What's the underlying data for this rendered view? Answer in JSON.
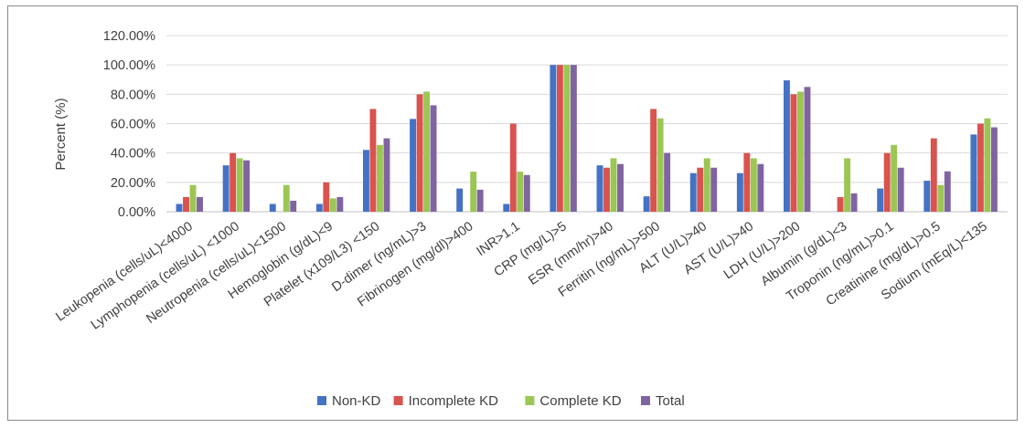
{
  "chart_data": {
    "type": "bar",
    "title": "",
    "xlabel": "",
    "ylabel": "Percent (%)",
    "ylim": [
      0,
      120
    ],
    "yticks": [
      "0.00%",
      "20.00%",
      "40.00%",
      "60.00%",
      "80.00%",
      "100.00%",
      "120.00%"
    ],
    "grid": true,
    "legend_position": "bottom",
    "categories": [
      "Leukopenia (cells/uL)<4000",
      "Lymphopenia (cells/uL) <1000",
      "Neutropenia (cells/uL)<1500",
      "Hemoglobin (g/dL)<9",
      "Platelet (x109/L3) <150",
      "D-dimer (ng/mL)>3",
      "Fibrinogen (mg/dl)>400",
      "INR>1.1",
      "CRP (mg/L)>5",
      "ESR (mm/hr)>40",
      "Ferritin (ng/mL)>500",
      "ALT (U/L)>40",
      "AST (U/L)>40",
      "LDH (U/L)>200",
      "Albumin (g/dL)<3",
      "Troponin (ng/mL)>0.1",
      "Creatinine (mg/dL)>0.5",
      "Sodium (mEq/L)<135"
    ],
    "series": [
      {
        "name": "Non-KD",
        "color": "#4472C4",
        "values": [
          5.3,
          31.6,
          5.3,
          5.3,
          42.1,
          63.2,
          15.8,
          5.3,
          100,
          31.6,
          10.5,
          26.3,
          26.3,
          89.5,
          0,
          15.8,
          21.1,
          52.6
        ]
      },
      {
        "name": "Incomplete KD",
        "color": "#D9534F",
        "values": [
          10,
          40,
          0,
          20,
          70,
          80,
          0,
          60,
          100,
          30,
          70,
          30,
          40,
          80,
          10,
          40,
          50,
          60
        ]
      },
      {
        "name": "Complete KD",
        "color": "#9BC654",
        "values": [
          18.2,
          36.4,
          18.2,
          9.1,
          45.5,
          81.8,
          27.3,
          27.3,
          100,
          36.4,
          63.6,
          36.4,
          36.4,
          81.8,
          36.4,
          45.5,
          18.2,
          63.6
        ]
      },
      {
        "name": "Total",
        "color": "#8064A2",
        "values": [
          10,
          35,
          7.5,
          10,
          50,
          72.5,
          15,
          25,
          100,
          32.5,
          40,
          30,
          32.5,
          85,
          12.5,
          30,
          27.5,
          57.5
        ]
      }
    ]
  }
}
